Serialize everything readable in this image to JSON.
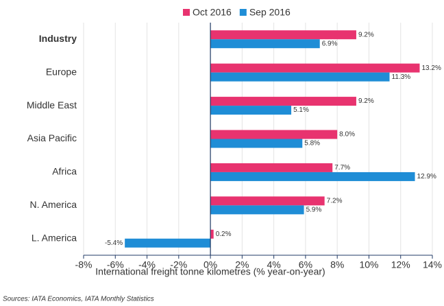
{
  "chart_data": {
    "type": "bar",
    "orientation": "horizontal",
    "categories": [
      "Industry",
      "Europe",
      "Middle East",
      "Asia Pacific",
      "Africa",
      "N. America",
      "L. America"
    ],
    "series": [
      {
        "name": "Oct 2016",
        "color": "#e8336f",
        "values": [
          9.2,
          13.2,
          9.2,
          8.0,
          7.7,
          7.2,
          0.2
        ],
        "value_labels": [
          "9.2%",
          "13.2%",
          "9.2%",
          "8.0%",
          "7.7%",
          "7.2%",
          "0.2%"
        ]
      },
      {
        "name": "Sep 2016",
        "color": "#1f8dd6",
        "values": [
          6.9,
          11.3,
          5.1,
          5.8,
          12.9,
          5.9,
          -5.4
        ],
        "value_labels": [
          "6.9%",
          "11.3%",
          "5.1%",
          "5.8%",
          "12.9%",
          "5.9%",
          "-5.4%"
        ]
      }
    ],
    "xlabel": "International freight tonne kilometres (% year-on-year)",
    "xlim": [
      -8,
      14
    ],
    "xticks": [
      {
        "value": -8,
        "label": "-8%"
      },
      {
        "value": -6,
        "label": "-6%"
      },
      {
        "value": -4,
        "label": "-4%"
      },
      {
        "value": -2,
        "label": "-2%"
      },
      {
        "value": 0,
        "label": "0%"
      },
      {
        "value": 2,
        "label": "2%"
      },
      {
        "value": 4,
        "label": "4%"
      },
      {
        "value": 6,
        "label": "6%"
      },
      {
        "value": 8,
        "label": "8%"
      },
      {
        "value": 10,
        "label": "10%"
      },
      {
        "value": 12,
        "label": "12%"
      },
      {
        "value": 14,
        "label": "14%"
      }
    ],
    "grid": true,
    "legend": "top",
    "source": "Sources: IATA Economics, IATA Monthly Statistics"
  }
}
